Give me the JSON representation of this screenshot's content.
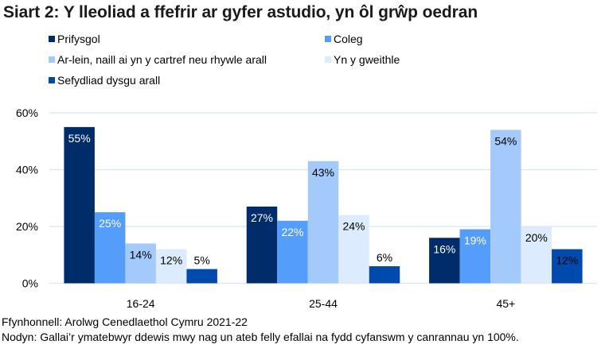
{
  "chart_data": {
    "type": "bar",
    "title": "Siart 2: Y lleoliad a ffefrir ar gyfer astudio, yn ôl grŵp oedran",
    "categories": [
      "16-24",
      "25-44",
      "45+"
    ],
    "series": [
      {
        "name": "Prifysgol",
        "color": "#002d6a",
        "label_color": "#ffffff",
        "values": [
          55,
          27,
          16
        ]
      },
      {
        "name": "Coleg",
        "color": "#559dfb",
        "label_color": "#ffffff",
        "values": [
          25,
          22,
          19
        ]
      },
      {
        "name": "Ar-lein, naill ai yn y cartref neu rhywle arall",
        "color": "#a4cafc",
        "label_color": "#000000",
        "values": [
          14,
          43,
          54
        ]
      },
      {
        "name": "Yn y gweithle",
        "color": "#dcebfd",
        "label_color": "#000000",
        "values": [
          12,
          24,
          20
        ]
      },
      {
        "name": "Sefydliad dysgu arall",
        "color": "#004aad",
        "label_color": "#000000",
        "values": [
          5,
          6,
          12
        ]
      }
    ],
    "data_labels": [
      [
        "55%",
        "27%",
        "16%"
      ],
      [
        "25%",
        "22%",
        "19%"
      ],
      [
        "14%",
        "43%",
        "54%"
      ],
      [
        "12%",
        "24%",
        "20%"
      ],
      [
        "5%",
        "6%",
        "12%"
      ]
    ],
    "ylim": [
      0,
      60
    ],
    "yticks": [
      0,
      20,
      40,
      60
    ],
    "ytick_labels": [
      "0%",
      "20%",
      "40%",
      "60%"
    ],
    "xlabel": "",
    "ylabel": "",
    "grid": true,
    "legend_position": "top"
  },
  "footer": {
    "source": "Ffynhonnell: Arolwg Cenedlaethol Cymru 2021-22",
    "note": "Nodyn: Gallai’r ymatebwyr ddewis mwy nag un ateb felly efallai na fydd cyfanswm y canrannau yn 100%."
  }
}
